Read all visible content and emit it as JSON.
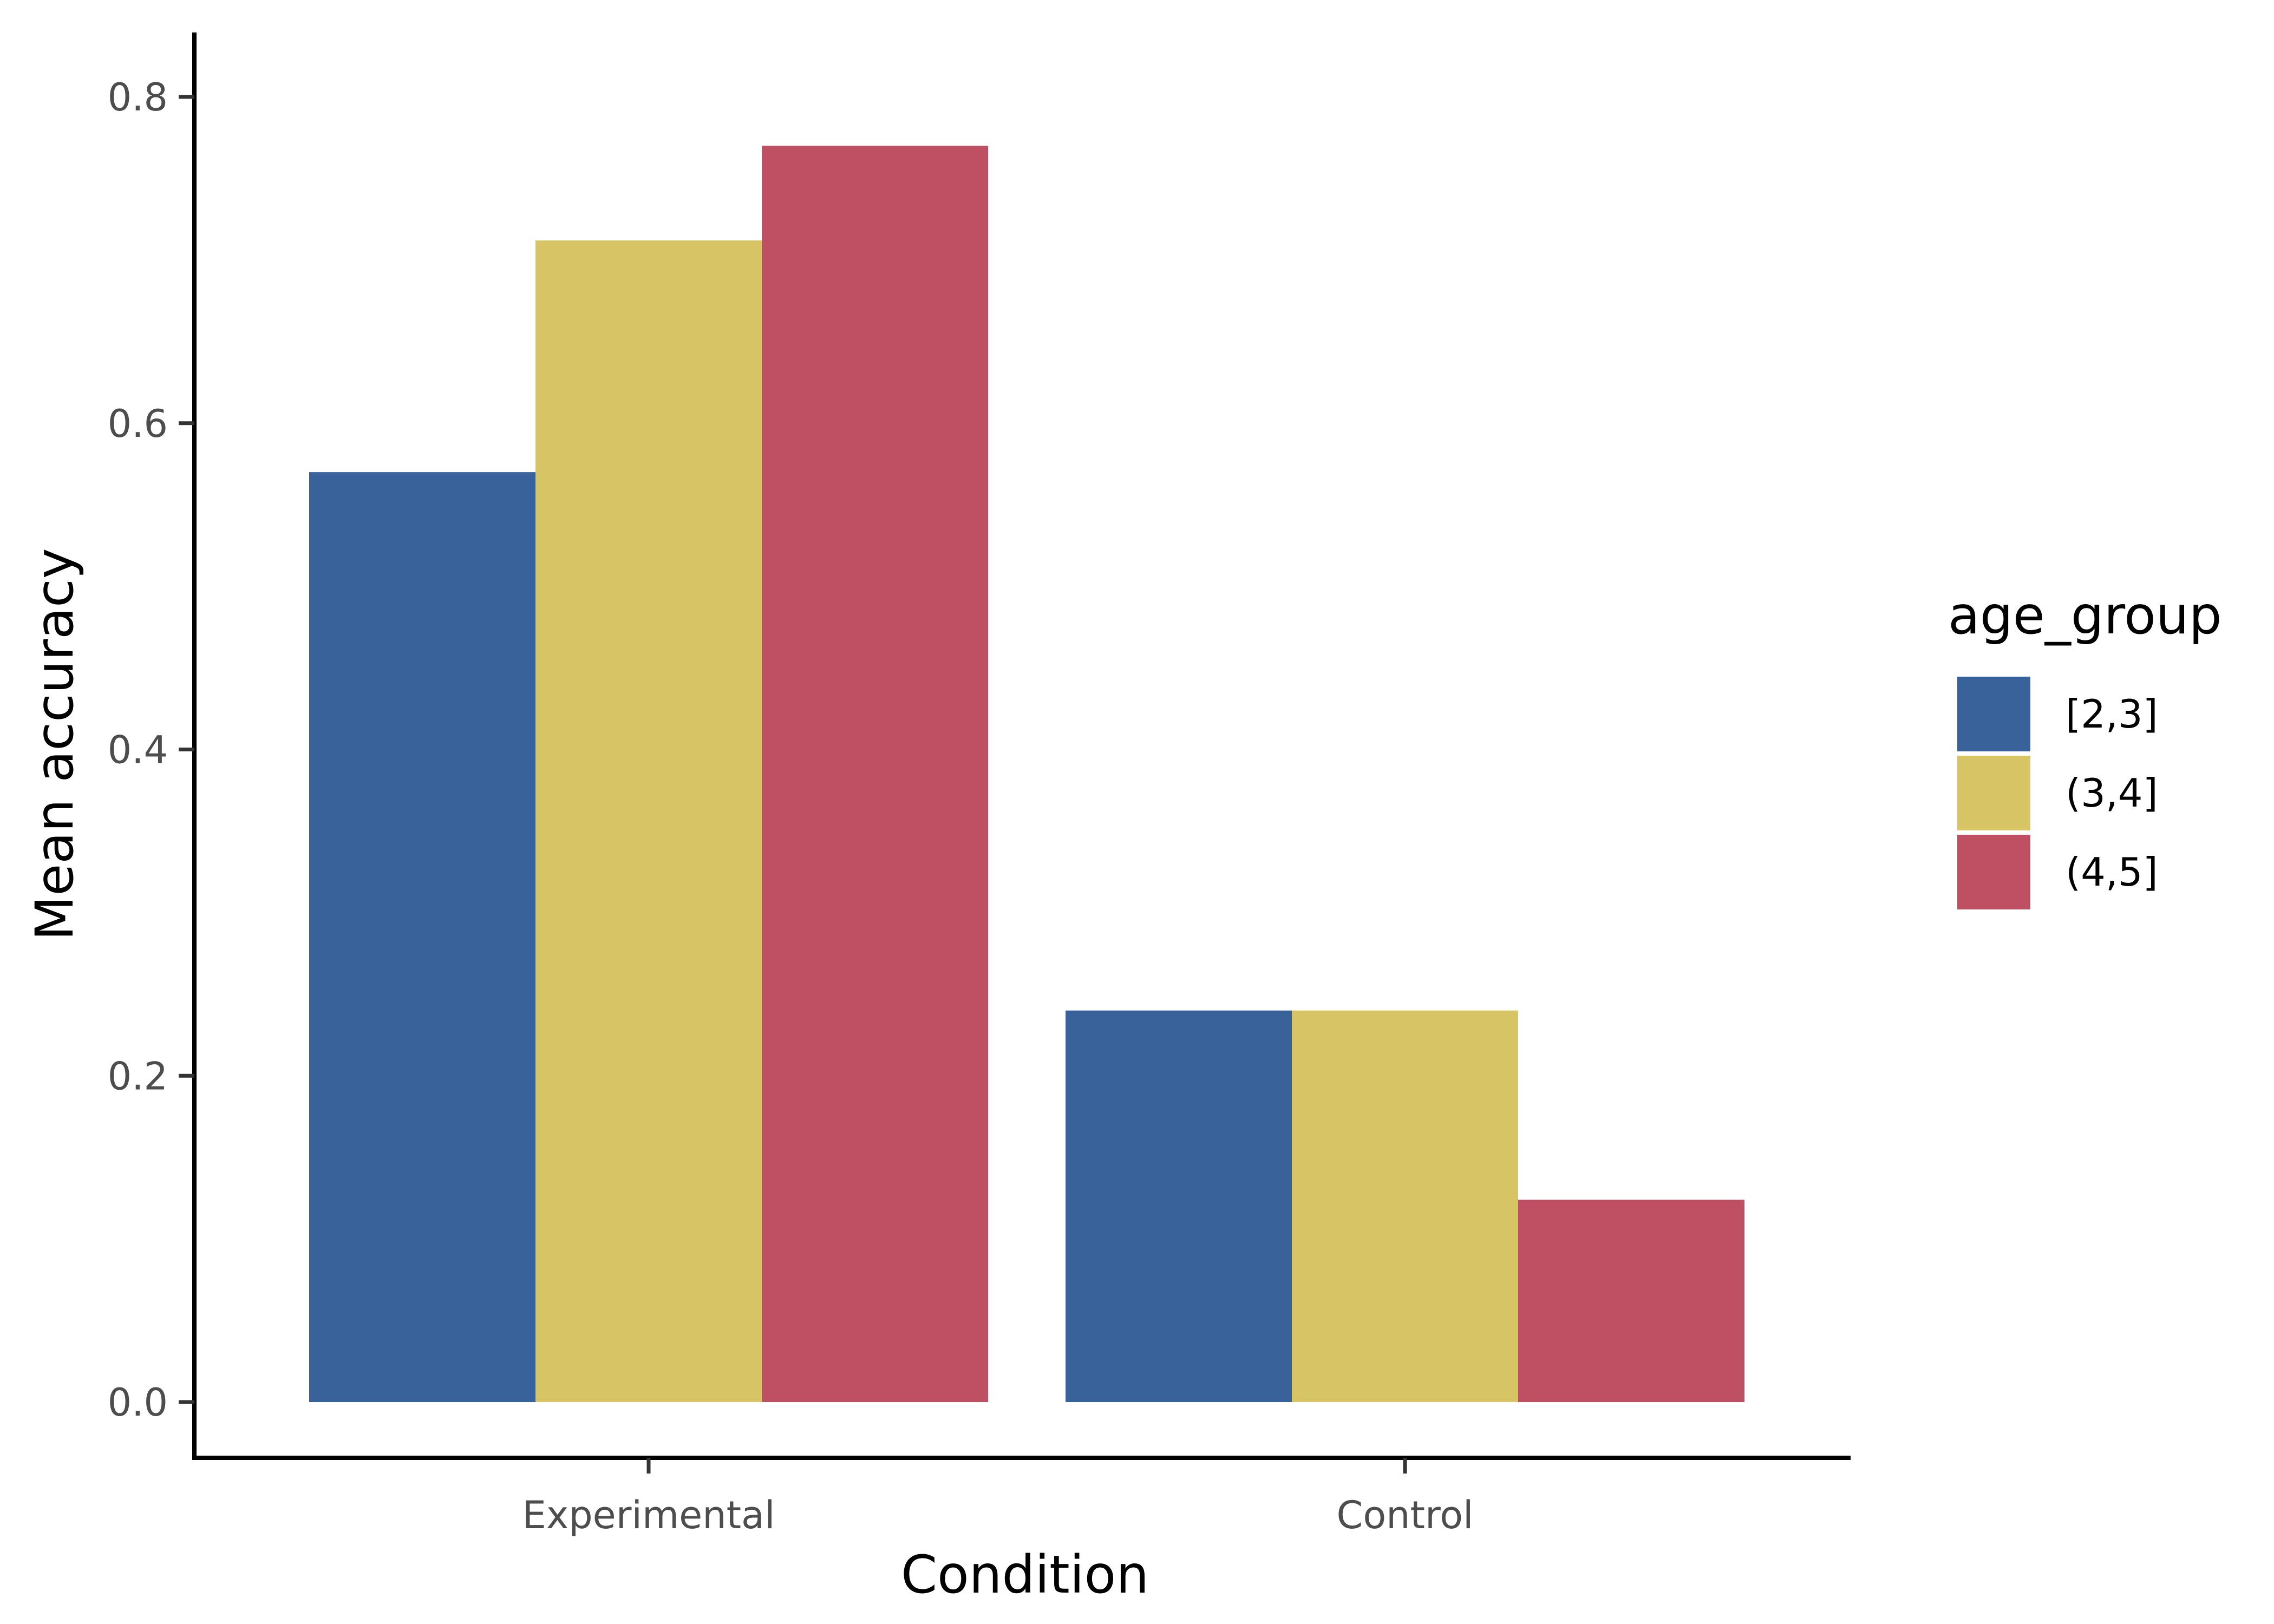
{
  "chart_data": {
    "type": "bar",
    "xlabel": "Condition",
    "ylabel": "Mean accuracy",
    "categories": [
      "Experimental",
      "Control"
    ],
    "ylim": [
      0,
      0.8
    ],
    "yticks": [
      "0.0",
      "0.2",
      "0.4",
      "0.6",
      "0.8"
    ],
    "legend": {
      "title": "age_group",
      "placement": "right"
    },
    "grid": false,
    "series": [
      {
        "name": "[2,3]",
        "color": "#386299",
        "values": [
          0.57,
          0.24
        ]
      },
      {
        "name": "(3,4]",
        "color": "#d7c565",
        "values": [
          0.712,
          0.24
        ]
      },
      {
        "name": "(4,5]",
        "color": "#bf5064",
        "values": [
          0.77,
          0.124
        ]
      }
    ]
  }
}
